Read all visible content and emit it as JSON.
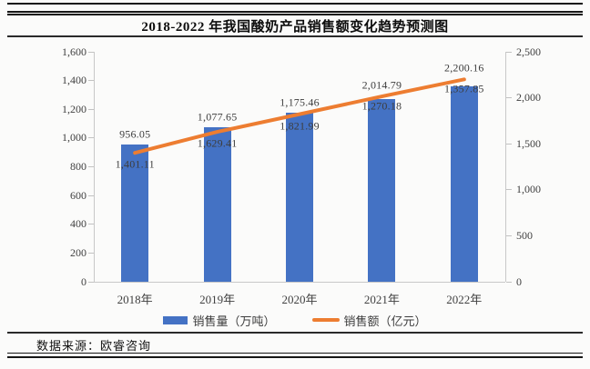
{
  "page": {
    "title": "2018-2022 年我国酸奶产品销售额变化趋势预测图",
    "source_note": "数据来源：欧睿咨询"
  },
  "chart_data": {
    "type": "bar+line",
    "title": "2018-2022 年我国酸奶产品销售额变化趋势预测图",
    "categories": [
      "2018年",
      "2019年",
      "2020年",
      "2021年",
      "2022年"
    ],
    "series": [
      {
        "name": "销售量（万吨）",
        "type": "bar",
        "axis": "left",
        "color": "#4472c4",
        "values": [
          956.05,
          1077.65,
          1175.46,
          1270.18,
          1357.85
        ],
        "labels": [
          "956.05",
          "1,077.65",
          "1,175.46",
          "1,270.18",
          "1,357.85"
        ]
      },
      {
        "name": "销售额（亿元）",
        "type": "line",
        "axis": "right",
        "color": "#ed7d31",
        "values": [
          1401.11,
          1629.41,
          1821.99,
          2014.79,
          2200.16
        ],
        "labels": [
          "1,401.11",
          "1,629.41",
          "1,821.99",
          "2,014.79",
          "2,200.16"
        ]
      }
    ],
    "left_axis": {
      "min": 0,
      "max": 1600,
      "step": 200,
      "tick_labels": [
        "0",
        "200",
        "400",
        "600",
        "800",
        "1,000",
        "1,200",
        "1,400",
        "1,600"
      ]
    },
    "right_axis": {
      "min": 0,
      "max": 2500,
      "step": 500,
      "tick_labels": [
        "0",
        "500",
        "1,000",
        "1,500",
        "2,000",
        "2,500"
      ]
    },
    "legend_position": "bottom",
    "gridlines": false
  }
}
